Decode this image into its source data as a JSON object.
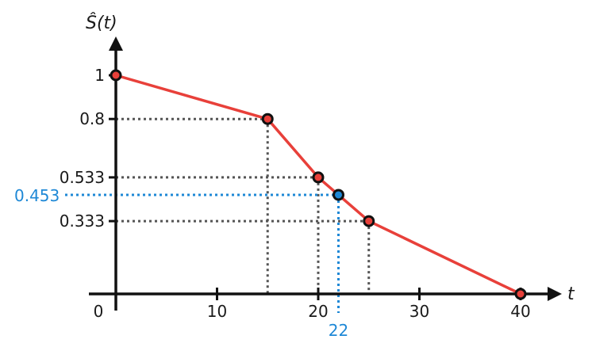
{
  "chart_data": {
    "type": "line",
    "ylabel": "Ŝ(t)",
    "xlabel": "t",
    "xlim": [
      0,
      43
    ],
    "ylim": [
      -0.1,
      1.2
    ],
    "x_ticks": [
      0,
      10,
      20,
      30,
      40
    ],
    "x_tick_labels": [
      "0",
      "10",
      "20",
      "30",
      "40"
    ],
    "y_ticks": [
      1,
      0.8,
      0.533,
      0.333
    ],
    "y_tick_labels": [
      "1",
      "0.8",
      "0.533",
      "0.333"
    ],
    "grid": false,
    "series": [
      {
        "x": [
          0,
          15,
          20,
          25,
          40
        ],
        "y": [
          1,
          0.8,
          0.533,
          0.333,
          0
        ]
      }
    ],
    "highlight": {
      "x": 22,
      "y": 0.453,
      "x_label": "22",
      "y_label": "0.453"
    },
    "colors": {
      "line": "#e8403a",
      "point_fill": "#e8403a",
      "highlight": "#1e88d6",
      "guide": "#555555",
      "axis": "#111111"
    }
  }
}
